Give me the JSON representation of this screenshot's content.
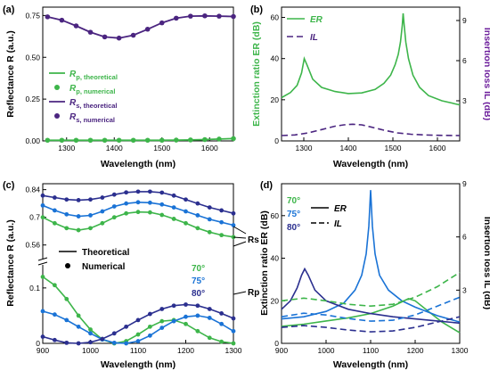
{
  "colors": {
    "p": "#3db54a",
    "s": "#4b2580",
    "ang70": "#3db54a",
    "ang75": "#1a73d6",
    "ang80": "#2b2f8f",
    "il_axis": "#6a1b9a",
    "er_axis": "#3db54a"
  },
  "chart_data": [
    {
      "panel": "(a)",
      "type": "line",
      "xlabel": "Wavelength (nm)",
      "ylabel": "Reflectance R (a.u.)",
      "xlim": [
        1250,
        1650
      ],
      "ylim": [
        0,
        0.8
      ],
      "xticks": [
        "1300",
        "1400",
        "1500",
        "1600"
      ],
      "yticks": [
        "0.00",
        "0.25",
        "0.50",
        "0.75"
      ],
      "x": [
        1260,
        1290,
        1320,
        1350,
        1380,
        1410,
        1440,
        1470,
        1500,
        1530,
        1560,
        1590,
        1620,
        1650
      ],
      "series": [
        {
          "name": "Rp, theoretical",
          "style": "line",
          "color_key": "p",
          "values": [
            0.004,
            0.004,
            0.004,
            0.004,
            0.004,
            0.004,
            0.004,
            0.004,
            0.004,
            0.005,
            0.006,
            0.008,
            0.011,
            0.014
          ]
        },
        {
          "name": "Rp, numerical",
          "style": "dots",
          "color_key": "p",
          "values": [
            0.004,
            0.004,
            0.004,
            0.004,
            0.004,
            0.004,
            0.004,
            0.004,
            0.004,
            0.005,
            0.006,
            0.008,
            0.011,
            0.014
          ]
        },
        {
          "name": "Rs, theoretical",
          "style": "line",
          "color_key": "s",
          "values": [
            0.742,
            0.722,
            0.688,
            0.65,
            0.622,
            0.615,
            0.632,
            0.668,
            0.706,
            0.734,
            0.746,
            0.748,
            0.746,
            0.744
          ]
        },
        {
          "name": "Rs, numerical",
          "style": "dots",
          "color_key": "s",
          "values": [
            0.742,
            0.722,
            0.688,
            0.65,
            0.622,
            0.615,
            0.632,
            0.668,
            0.706,
            0.734,
            0.746,
            0.748,
            0.746,
            0.744
          ]
        }
      ],
      "legend": {
        "placement": "center-left",
        "items": [
          {
            "main": "R",
            "sub": "p, theoretical",
            "marker": "line",
            "color_key": "p"
          },
          {
            "main": "R",
            "sub": "p, numerical",
            "marker": "dot",
            "color_key": "p"
          },
          {
            "main": "R",
            "sub": "s, theoretical",
            "marker": "line",
            "color_key": "s"
          },
          {
            "main": "R",
            "sub": "s, numerical",
            "marker": "dot",
            "color_key": "s"
          }
        ]
      }
    },
    {
      "panel": "(b)",
      "type": "line",
      "xlabel": "Wavelength (nm)",
      "ylabel_left": "Extinction ratio ER (dB)",
      "ylabel_right": "Insertion loss IL (dB)",
      "xlim": [
        1250,
        1650
      ],
      "ylim_left": [
        0,
        65
      ],
      "ylim_right": [
        0,
        10
      ],
      "xticks": [
        "1300",
        "1400",
        "1500",
        "1600"
      ],
      "yticks_left": [
        "0",
        "20",
        "40",
        "60"
      ],
      "yticks_right": [
        "3",
        "6",
        "9"
      ],
      "legend": {
        "placement": "top-left",
        "items": [
          "ER",
          "IL"
        ]
      },
      "series": [
        {
          "name": "ER",
          "axis": "left",
          "style": "solid",
          "color_key": "p",
          "x": [
            1250,
            1270,
            1285,
            1295,
            1301,
            1307,
            1320,
            1340,
            1370,
            1400,
            1430,
            1460,
            1480,
            1495,
            1505,
            1512,
            1517,
            1521,
            1523,
            1525,
            1529,
            1535,
            1545,
            1560,
            1580,
            1610,
            1650
          ],
          "values": [
            21,
            23.5,
            27,
            33,
            40,
            37,
            30,
            26,
            24,
            23,
            23.3,
            25,
            28,
            32,
            37,
            42,
            48,
            56,
            62,
            57,
            48,
            40,
            32,
            26,
            22,
            19.5,
            17.5
          ]
        },
        {
          "name": "IL",
          "axis": "right",
          "style": "dashed",
          "color_key": "s",
          "x": [
            1250,
            1280,
            1310,
            1340,
            1370,
            1390,
            1410,
            1430,
            1450,
            1480,
            1510,
            1540,
            1570,
            1600,
            1650
          ],
          "values": [
            0.4,
            0.45,
            0.6,
            0.85,
            1.1,
            1.2,
            1.25,
            1.2,
            1.05,
            0.8,
            0.6,
            0.5,
            0.45,
            0.42,
            0.4
          ]
        }
      ]
    },
    {
      "panel": "(c)",
      "type": "line",
      "xlabel": "Wavelength (nm)",
      "ylabel": "Reflectance R (a.u.)",
      "xlim": [
        900,
        1300
      ],
      "upper": {
        "ylim": [
          0.5,
          0.87
        ],
        "yticks": [
          "0.56",
          "0.7",
          "0.84"
        ]
      },
      "lower": {
        "ylim": [
          0,
          0.14
        ],
        "yticks": [
          "0",
          "0.1"
        ]
      },
      "xticks": [
        "900",
        "1000",
        "1100",
        "1200",
        "1300"
      ],
      "legend_items": [
        "Theoretical",
        "Numerical"
      ],
      "angles": [
        "70°",
        "75°",
        "80°"
      ],
      "annotations": [
        "Rs",
        "Rp"
      ],
      "x": [
        900,
        925,
        950,
        975,
        1000,
        1025,
        1050,
        1075,
        1100,
        1125,
        1150,
        1175,
        1200,
        1225,
        1250,
        1275,
        1300
      ],
      "series": [
        {
          "name": "Rs 70°",
          "group": "upper",
          "color_key": "ang70",
          "values": [
            0.7,
            0.67,
            0.645,
            0.635,
            0.645,
            0.67,
            0.7,
            0.72,
            0.727,
            0.725,
            0.712,
            0.692,
            0.67,
            0.645,
            0.625,
            0.61,
            0.6
          ]
        },
        {
          "name": "Rs 75°",
          "group": "upper",
          "color_key": "ang75",
          "values": [
            0.76,
            0.735,
            0.715,
            0.705,
            0.71,
            0.73,
            0.755,
            0.77,
            0.776,
            0.774,
            0.765,
            0.75,
            0.73,
            0.71,
            0.69,
            0.675,
            0.66
          ]
        },
        {
          "name": "Rs 80°",
          "group": "upper",
          "color_key": "ang80",
          "values": [
            0.81,
            0.8,
            0.79,
            0.787,
            0.79,
            0.8,
            0.815,
            0.826,
            0.83,
            0.83,
            0.825,
            0.81,
            0.79,
            0.77,
            0.75,
            0.735,
            0.72
          ]
        },
        {
          "name": "Rp 70°",
          "group": "lower",
          "color_key": "ang70",
          "values": [
            0.12,
            0.105,
            0.08,
            0.05,
            0.025,
            0.007,
            0.0,
            0.004,
            0.016,
            0.03,
            0.04,
            0.042,
            0.035,
            0.022,
            0.01,
            0.003,
            0.0
          ]
        },
        {
          "name": "Rp 75°",
          "group": "lower",
          "color_key": "ang75",
          "values": [
            0.058,
            0.052,
            0.042,
            0.03,
            0.018,
            0.007,
            0.001,
            0.0,
            0.004,
            0.014,
            0.028,
            0.04,
            0.048,
            0.05,
            0.046,
            0.035,
            0.022
          ]
        },
        {
          "name": "Rp 80°",
          "group": "lower",
          "color_key": "ang80",
          "values": [
            0.012,
            0.006,
            0.001,
            0.0,
            0.002,
            0.008,
            0.018,
            0.03,
            0.042,
            0.053,
            0.062,
            0.068,
            0.07,
            0.068,
            0.062,
            0.054,
            0.045
          ]
        }
      ]
    },
    {
      "panel": "(d)",
      "type": "line",
      "xlabel": "Wavelength (nm)",
      "ylabel_left": "Extinction ratio ER (dB)",
      "ylabel_right": "Insertion loss IL (dB)",
      "xlim": [
        900,
        1300
      ],
      "ylim_left": [
        0,
        75
      ],
      "ylim_right": [
        0,
        9
      ],
      "xticks": [
        "900",
        "1000",
        "1100",
        "1200",
        "1300"
      ],
      "yticks_left": [
        "0",
        "20",
        "40",
        "60"
      ],
      "yticks_right": [
        "3",
        "6",
        "9"
      ],
      "legend": {
        "placement": "top-left",
        "angles": [
          "70°",
          "75°",
          "80°"
        ],
        "items": [
          "ER",
          "IL"
        ]
      },
      "series": [
        {
          "name": "ER 70°",
          "axis": "left",
          "style": "solid",
          "color_key": "ang70",
          "x": [
            900,
            950,
            1000,
            1050,
            1100,
            1150,
            1170,
            1185,
            1200,
            1230,
            1260,
            1300
          ],
          "values": [
            8,
            9,
            10.5,
            12,
            14,
            17.5,
            19.5,
            21,
            20,
            15,
            10,
            5
          ]
        },
        {
          "name": "ER 75°",
          "axis": "left",
          "style": "solid",
          "color_key": "ang75",
          "x": [
            900,
            950,
            1000,
            1040,
            1065,
            1080,
            1090,
            1096,
            1100,
            1104,
            1110,
            1120,
            1140,
            1170,
            1200,
            1250,
            1300
          ],
          "values": [
            11.5,
            12.5,
            15,
            19,
            25,
            32,
            42,
            55,
            72,
            55,
            42,
            32,
            25,
            20,
            17,
            13,
            10
          ]
        },
        {
          "name": "ER 80°",
          "axis": "left",
          "style": "solid",
          "color_key": "ang80",
          "x": [
            900,
            920,
            935,
            945,
            952,
            960,
            975,
            1000,
            1050,
            1100,
            1150,
            1200,
            1250,
            1300
          ],
          "values": [
            16,
            20,
            26,
            32,
            35,
            32,
            25,
            20,
            16,
            14,
            12.5,
            11.5,
            10.5,
            9.5
          ]
        },
        {
          "name": "IL 70°",
          "axis": "right",
          "style": "dashed",
          "color_key": "ang70",
          "x": [
            900,
            950,
            1000,
            1050,
            1100,
            1150,
            1200,
            1250,
            1300
          ],
          "values": [
            2.4,
            2.55,
            2.4,
            2.2,
            2.1,
            2.2,
            2.6,
            3.2,
            4.0
          ]
        },
        {
          "name": "IL 75°",
          "axis": "right",
          "style": "dashed",
          "color_key": "ang75",
          "x": [
            900,
            950,
            1000,
            1050,
            1100,
            1150,
            1200,
            1250,
            1300
          ],
          "values": [
            1.5,
            1.7,
            1.6,
            1.4,
            1.25,
            1.3,
            1.6,
            2.1,
            2.6
          ]
        },
        {
          "name": "IL 80°",
          "axis": "right",
          "style": "dashed",
          "color_key": "ang80",
          "x": [
            900,
            950,
            1000,
            1050,
            1100,
            1150,
            1200,
            1250,
            1300
          ],
          "values": [
            0.9,
            1.0,
            0.9,
            0.75,
            0.65,
            0.7,
            0.9,
            1.2,
            1.5
          ]
        }
      ]
    }
  ]
}
